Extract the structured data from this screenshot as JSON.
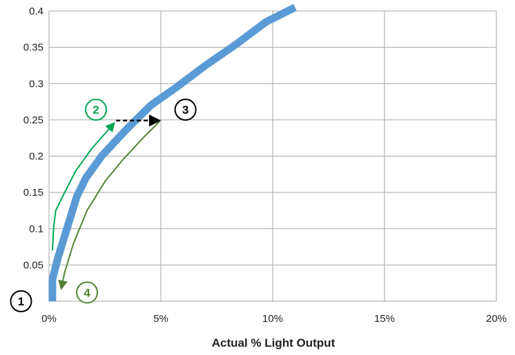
{
  "chart_data": {
    "type": "line",
    "title": "",
    "xlabel": "Actual % Light Output",
    "ylabel": "",
    "xlim": [
      0,
      0.2
    ],
    "ylim": [
      0,
      0.4
    ],
    "x_ticks": [
      0,
      0.05,
      0.1,
      0.15,
      0.2
    ],
    "x_tick_labels": [
      "0%",
      "5%",
      "10%",
      "15%",
      "20%"
    ],
    "y_ticks": [
      0,
      0.05,
      0.1,
      0.15,
      0.2,
      0.25,
      0.3,
      0.35,
      0.4
    ],
    "y_tick_labels": [
      "",
      "0.05",
      "0.1",
      "0.15",
      "0.2",
      "0.25",
      "0.3",
      "0.35",
      "0.4"
    ],
    "grid": true,
    "series": [
      {
        "color": "#5b9bd5",
        "points": [
          [
            0.0015,
            0.0
          ],
          [
            0.0015,
            0.03
          ],
          [
            0.004,
            0.06
          ],
          [
            0.008,
            0.1
          ],
          [
            0.0125,
            0.145
          ],
          [
            0.0165,
            0.17
          ],
          [
            0.0235,
            0.2
          ],
          [
            0.034,
            0.235
          ],
          [
            0.0455,
            0.27
          ],
          [
            0.057,
            0.295
          ],
          [
            0.07,
            0.325
          ],
          [
            0.084,
            0.355
          ],
          [
            0.097,
            0.385
          ],
          [
            0.11,
            0.405
          ]
        ]
      }
    ],
    "annotations": [
      {
        "kind": "curve-arrow",
        "color": "#00a651",
        "points": [
          [
            0.0015,
            0.07
          ],
          [
            0.002,
            0.1
          ],
          [
            0.003,
            0.125
          ],
          [
            0.007,
            0.15
          ],
          [
            0.012,
            0.18
          ],
          [
            0.019,
            0.21
          ],
          [
            0.029,
            0.245
          ]
        ]
      },
      {
        "kind": "dashed-arrow",
        "color": "#000000",
        "points": [
          [
            0.03,
            0.249
          ],
          [
            0.049,
            0.249
          ]
        ]
      },
      {
        "kind": "curve-arrow",
        "color": "#548235",
        "points": [
          [
            0.0495,
            0.248
          ],
          [
            0.042,
            0.225
          ],
          [
            0.033,
            0.195
          ],
          [
            0.025,
            0.165
          ],
          [
            0.017,
            0.125
          ],
          [
            0.011,
            0.08
          ],
          [
            0.007,
            0.04
          ],
          [
            0.0055,
            0.018
          ]
        ]
      }
    ],
    "markers": [
      {
        "label": "1",
        "color": "#000000",
        "x": -0.0125,
        "y": 0.0
      },
      {
        "label": "2",
        "color": "#00a651",
        "x": 0.021,
        "y": 0.264
      },
      {
        "label": "3",
        "color": "#000000",
        "x": 0.061,
        "y": 0.264
      },
      {
        "label": "4",
        "color": "#548235",
        "x": 0.017,
        "y": 0.012
      }
    ]
  }
}
